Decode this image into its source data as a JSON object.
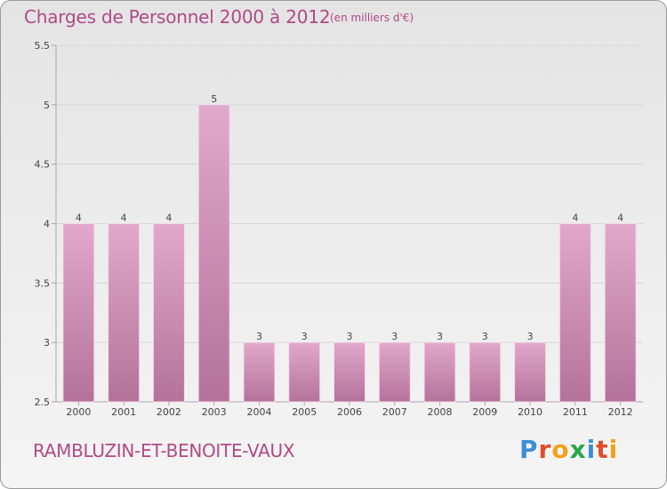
{
  "header": {
    "title": "Charges de Personnel 2000 à 2012",
    "subtitle": "(en milliers d'€)"
  },
  "footer": {
    "commune": "RAMBLUZIN-ET-BENOITE-VAUX",
    "logo_letters": [
      "P",
      "r",
      "o",
      "x",
      "i",
      "t",
      "i"
    ],
    "logo_colors": [
      "#3b8fd6",
      "#e24b2a",
      "#f2a11a",
      "#2aa84a",
      "#3b8fd6",
      "#e24b2a",
      "#f2a11a"
    ]
  },
  "colors": {
    "bar_top": "#e2a8cb",
    "bar_bottom": "#b4729a",
    "text": "#b04a86",
    "axis": "#a8a8a8",
    "grid": "#d6d6d6"
  },
  "chart_data": {
    "type": "bar",
    "title": "Charges de Personnel 2000 à 2012",
    "subtitle": "(en milliers d'€)",
    "categories": [
      "2000",
      "2001",
      "2002",
      "2003",
      "2004",
      "2005",
      "2006",
      "2007",
      "2008",
      "2009",
      "2010",
      "2011",
      "2012"
    ],
    "values": [
      4,
      4,
      4,
      5,
      3,
      3,
      3,
      3,
      3,
      3,
      3,
      4,
      4
    ],
    "data_labels": [
      "4",
      "4",
      "4",
      "5",
      "3",
      "3",
      "3",
      "3",
      "3",
      "3",
      "3",
      "4",
      "4"
    ],
    "ylim": [
      2.5,
      5.5
    ],
    "yticks": [
      2.5,
      3,
      3.5,
      4,
      4.5,
      5,
      5.5
    ],
    "ytick_labels": [
      "2.5",
      "3",
      "3.5",
      "4",
      "4.5",
      "5",
      "5.5"
    ],
    "grid": true,
    "xlabel": "",
    "ylabel": ""
  }
}
